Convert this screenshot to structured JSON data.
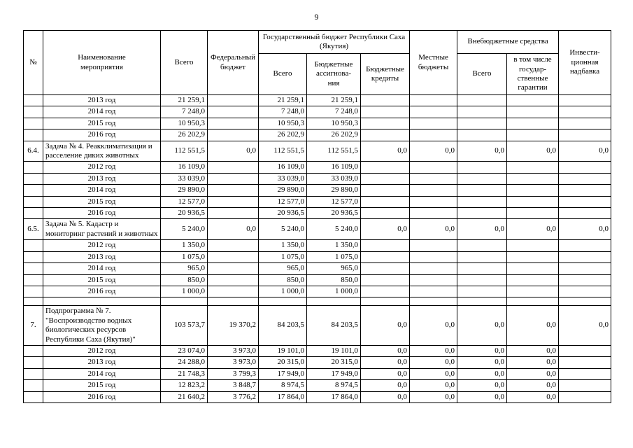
{
  "page_number": "9",
  "header": {
    "no": "№",
    "name": "Наименование\nмероприятия",
    "total": "Всего",
    "federal": "Федеральный\nбюджет",
    "state_group": "Государственный бюджет Республики Саха (Якутия)",
    "state_total": "Всего",
    "state_assign": "Бюджетные\nассигнова-\nния",
    "budget_credits": "Бюджетные\nкредиты",
    "local_budgets": "Местные\nбюджеты",
    "extra_group": "Внебюджетные средства",
    "extra_total": "Всего",
    "extra_guarantees": "в том числе\nгосудар-\nственные\nгарантии",
    "investment": "Инвести-\nционная\nнадбавка"
  },
  "table": {
    "rows": [
      {
        "no": "",
        "name": "2013 год",
        "type": "year",
        "values": [
          "21 259,1",
          "",
          "21 259,1",
          "21 259,1",
          "",
          "",
          "",
          "",
          ""
        ]
      },
      {
        "no": "",
        "name": "2014 год",
        "type": "year",
        "values": [
          "7 248,0",
          "",
          "7 248,0",
          "7 248,0",
          "",
          "",
          "",
          "",
          ""
        ]
      },
      {
        "no": "",
        "name": "2015 год",
        "type": "year",
        "values": [
          "10 950,3",
          "",
          "10 950,3",
          "10 950,3",
          "",
          "",
          "",
          "",
          ""
        ]
      },
      {
        "no": "",
        "name": "2016 год",
        "type": "year",
        "values": [
          "26 202,9",
          "",
          "26 202,9",
          "26 202,9",
          "",
          "",
          "",
          "",
          ""
        ]
      },
      {
        "no": "6.4.",
        "name": "Задача № 4. Реакклиматизация и расселение диких животных",
        "type": "task",
        "values": [
          "112 551,5",
          "0,0",
          "112 551,5",
          "112 551,5",
          "0,0",
          "0,0",
          "0,0",
          "0,0",
          "0,0"
        ]
      },
      {
        "no": "",
        "name": "2012 год",
        "type": "year",
        "values": [
          "16 109,0",
          "",
          "16 109,0",
          "16 109,0",
          "",
          "",
          "",
          "",
          ""
        ]
      },
      {
        "no": "",
        "name": "2013 год",
        "type": "year",
        "values": [
          "33 039,0",
          "",
          "33 039,0",
          "33 039,0",
          "",
          "",
          "",
          "",
          ""
        ]
      },
      {
        "no": "",
        "name": "2014 год",
        "type": "year",
        "values": [
          "29 890,0",
          "",
          "29 890,0",
          "29 890,0",
          "",
          "",
          "",
          "",
          ""
        ]
      },
      {
        "no": "",
        "name": "2015 год",
        "type": "year",
        "values": [
          "12 577,0",
          "",
          "12 577,0",
          "12 577,0",
          "",
          "",
          "",
          "",
          ""
        ]
      },
      {
        "no": "",
        "name": "2016 год",
        "type": "year",
        "values": [
          "20 936,5",
          "",
          "20 936,5",
          "20 936,5",
          "",
          "",
          "",
          "",
          ""
        ]
      },
      {
        "no": "6.5.",
        "name": "Задача № 5. Кадастр и мониторинг растений и животных",
        "type": "task",
        "values": [
          "5 240,0",
          "0,0",
          "5 240,0",
          "5 240,0",
          "0,0",
          "0,0",
          "0,0",
          "0,0",
          "0,0"
        ]
      },
      {
        "no": "",
        "name": "2012 год",
        "type": "year",
        "values": [
          "1 350,0",
          "",
          "1 350,0",
          "1 350,0",
          "",
          "",
          "",
          "",
          ""
        ]
      },
      {
        "no": "",
        "name": "2013 год",
        "type": "year",
        "values": [
          "1 075,0",
          "",
          "1 075,0",
          "1 075,0",
          "",
          "",
          "",
          "",
          ""
        ]
      },
      {
        "no": "",
        "name": "2014 год",
        "type": "year",
        "values": [
          "965,0",
          "",
          "965,0",
          "965,0",
          "",
          "",
          "",
          "",
          ""
        ]
      },
      {
        "no": "",
        "name": "2015 год",
        "type": "year",
        "values": [
          "850,0",
          "",
          "850,0",
          "850,0",
          "",
          "",
          "",
          "",
          ""
        ]
      },
      {
        "no": "",
        "name": "2016 год",
        "type": "year",
        "values": [
          "1 000,0",
          "",
          "1 000,0",
          "1 000,0",
          "",
          "",
          "",
          "",
          ""
        ]
      },
      {
        "no": "",
        "name": "",
        "type": "empty",
        "values": [
          "",
          "",
          "",
          "",
          "",
          "",
          "",
          "",
          ""
        ]
      },
      {
        "no": "7.",
        "name": "Подпрограмма № 7. \"Воспроизводство водных биологических ресурсов Республики Саха (Якутия)\"",
        "type": "task",
        "values": [
          "103 573,7",
          "19 370,2",
          "84 203,5",
          "84 203,5",
          "0,0",
          "0,0",
          "0,0",
          "0,0",
          "0,0"
        ]
      },
      {
        "no": "",
        "name": "2012 год",
        "type": "year",
        "values": [
          "23 074,0",
          "3 973,0",
          "19 101,0",
          "19 101,0",
          "0,0",
          "0,0",
          "0,0",
          "0,0",
          ""
        ]
      },
      {
        "no": "",
        "name": "2013 год",
        "type": "year",
        "values": [
          "24 288,0",
          "3 973,0",
          "20 315,0",
          "20 315,0",
          "0,0",
          "0,0",
          "0,0",
          "0,0",
          ""
        ]
      },
      {
        "no": "",
        "name": "2014 год",
        "type": "year",
        "values": [
          "21 748,3",
          "3 799,3",
          "17 949,0",
          "17 949,0",
          "0,0",
          "0,0",
          "0,0",
          "0,0",
          ""
        ]
      },
      {
        "no": "",
        "name": "2015 год",
        "type": "year",
        "values": [
          "12 823,2",
          "3 848,7",
          "8 974,5",
          "8 974,5",
          "0,0",
          "0,0",
          "0,0",
          "0,0",
          ""
        ]
      },
      {
        "no": "",
        "name": "2016 год",
        "type": "year",
        "values": [
          "21 640,2",
          "3 776,2",
          "17 864,0",
          "17 864,0",
          "0,0",
          "0,0",
          "0,0",
          "0,0",
          ""
        ]
      }
    ]
  }
}
